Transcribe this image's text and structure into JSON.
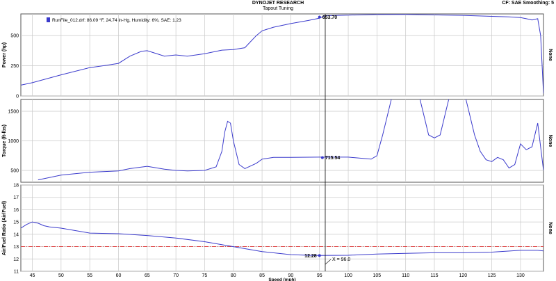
{
  "header": {
    "company": "DYNOJET RESEARCH",
    "subtitle": "Tapout Tuning",
    "corner": "CF: SAE  Smoothing: 5"
  },
  "legend": {
    "run": "RunFile_012.drf: 86.09 °F, 24.74 in-Hg, Humidity: 6%, SAE: 1.23"
  },
  "cursor": {
    "label": "X = 96.0"
  },
  "colors": {
    "line": "#3a3acc",
    "axis": "#555555",
    "grid": "#c9c9c9",
    "panel": "#ffffff",
    "afr_ref": "#e03030"
  },
  "chart_data": [
    {
      "type": "line",
      "title": "",
      "xlabel": "Speed (mph)",
      "ylabel": "Power (hp)",
      "right_label": "None",
      "xlim": [
        43,
        134
      ],
      "ylim": [
        0,
        680
      ],
      "xticks": [
        45,
        50,
        55,
        60,
        65,
        70,
        75,
        80,
        85,
        90,
        95,
        100,
        105,
        110,
        115,
        120,
        125,
        130
      ],
      "yticks": [
        0,
        250,
        500
      ],
      "grid": true,
      "x": [
        43,
        45,
        50,
        55,
        58,
        60,
        62,
        64,
        65,
        66,
        68,
        70,
        72,
        75,
        78,
        80,
        82,
        83,
        84,
        85,
        87,
        90,
        93,
        95,
        96,
        100,
        105,
        110,
        115,
        120,
        125,
        128,
        130,
        131,
        132,
        133,
        133.5,
        134
      ],
      "values": [
        90,
        110,
        175,
        235,
        255,
        270,
        330,
        370,
        375,
        360,
        330,
        340,
        330,
        350,
        380,
        385,
        400,
        450,
        500,
        540,
        570,
        600,
        625,
        645,
        665,
        670,
        675,
        676,
        672,
        668,
        660,
        655,
        650,
        640,
        630,
        640,
        500,
        20
      ],
      "annotations": [
        {
          "x": 95,
          "y": 653.7,
          "text": "653.70"
        }
      ]
    },
    {
      "type": "line",
      "title": "",
      "xlabel": "Speed (mph)",
      "ylabel": "Torque (ft-lbs)",
      "right_label": "None",
      "xlim": [
        43,
        134
      ],
      "ylim": [
        300,
        1700
      ],
      "xticks": [
        45,
        50,
        55,
        60,
        65,
        70,
        75,
        80,
        85,
        90,
        95,
        100,
        105,
        110,
        115,
        120,
        125,
        130
      ],
      "yticks": [
        500,
        1000,
        1500
      ],
      "grid": true,
      "x": [
        46,
        50,
        55,
        60,
        62,
        65,
        68,
        70,
        72,
        75,
        77,
        78,
        78.5,
        79,
        79.5,
        80,
        81,
        82,
        84,
        85,
        87,
        90,
        95,
        100,
        104,
        105,
        106,
        107,
        108,
        110,
        112,
        113,
        114,
        115,
        116,
        117,
        118,
        120,
        121,
        122,
        123,
        124,
        125,
        126,
        127,
        128,
        129,
        130,
        131,
        132,
        133,
        134
      ],
      "values": [
        340,
        420,
        470,
        490,
        530,
        570,
        520,
        500,
        490,
        500,
        560,
        820,
        1150,
        1330,
        1300,
        1000,
        600,
        530,
        620,
        690,
        720,
        720,
        725,
        725,
        690,
        750,
        1100,
        1500,
        1900,
        1900,
        1900,
        1500,
        1100,
        1050,
        1100,
        1500,
        1900,
        1900,
        1500,
        1100,
        820,
        680,
        650,
        720,
        680,
        540,
        600,
        950,
        850,
        900,
        1300,
        500
      ],
      "annotations": [
        {
          "x": 95.5,
          "y": 715.54,
          "text": "715.54"
        }
      ]
    },
    {
      "type": "line",
      "title": "",
      "xlabel": "Speed (mph)",
      "ylabel": "Air/Fuel Ratio (Air/Fuel)",
      "right_label": "None",
      "xlim": [
        43,
        134
      ],
      "ylim": [
        11,
        18
      ],
      "xticks": [
        45,
        50,
        55,
        60,
        65,
        70,
        75,
        80,
        85,
        90,
        95,
        100,
        105,
        110,
        115,
        120,
        125,
        130
      ],
      "xtick_labels": [
        "45",
        "50",
        "55",
        "60",
        "65",
        "70",
        "75",
        "80",
        "85",
        "90",
        "95",
        "100",
        "105",
        "110",
        "115",
        "120",
        "125",
        "130"
      ],
      "yticks": [
        11,
        12,
        13,
        14,
        15,
        16,
        17,
        18
      ],
      "grid": true,
      "reference_line": 13.0,
      "x": [
        43,
        44,
        45,
        46,
        47,
        48,
        50,
        55,
        60,
        65,
        70,
        75,
        80,
        85,
        90,
        93,
        95,
        100,
        105,
        110,
        115,
        120,
        125,
        130,
        133,
        134
      ],
      "values": [
        14.5,
        14.8,
        15.0,
        14.9,
        14.7,
        14.6,
        14.5,
        14.1,
        14.05,
        13.9,
        13.7,
        13.4,
        13.0,
        12.6,
        12.35,
        12.3,
        12.28,
        12.3,
        12.4,
        12.45,
        12.5,
        12.5,
        12.55,
        12.7,
        12.7,
        12.65
      ],
      "annotations": [
        {
          "x": 95,
          "y": 12.28,
          "text": "12.28"
        }
      ]
    }
  ]
}
